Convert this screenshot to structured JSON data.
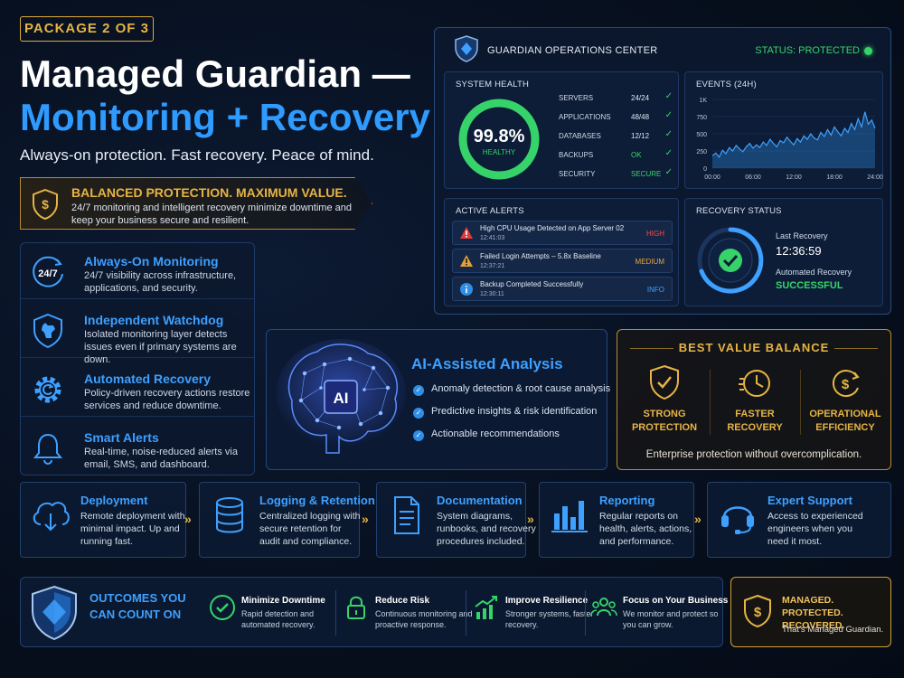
{
  "header": {
    "badge": "PACKAGE 2 OF 3",
    "title_line1": "Managed Guardian —",
    "title_line2": "Monitoring + Recovery",
    "tagline": "Always-on protection. Fast recovery. Peace of mind."
  },
  "value_banner": {
    "title": "BALANCED PROTECTION. MAXIMUM VALUE.",
    "text": "24/7 monitoring and intelligent recovery minimize downtime and keep your business secure and resilient."
  },
  "features": [
    {
      "title": "Always-On Monitoring",
      "text": "24/7 visibility across infrastructure, applications, and security.",
      "icon": "clock-24-7-icon",
      "icon_label": "24/7"
    },
    {
      "title": "Independent Watchdog",
      "text": "Isolated monitoring layer detects issues even if primary systems are down.",
      "icon": "watchdog-shield-icon"
    },
    {
      "title": "Automated Recovery",
      "text": "Policy-driven recovery actions restore services and reduce downtime.",
      "icon": "gear-refresh-icon"
    },
    {
      "title": "Smart Alerts",
      "text": "Real-time, noise-reduced alerts via email, SMS, and dashboard.",
      "icon": "bell-icon"
    }
  ],
  "ops_center": {
    "title": "GUARDIAN OPERATIONS CENTER",
    "status": "STATUS: PROTECTED",
    "system_health": {
      "title": "SYSTEM HEALTH",
      "value": "99.8%",
      "percent": 99.8,
      "label": "HEALTHY",
      "rows": [
        {
          "name": "SERVERS",
          "value": "24/24"
        },
        {
          "name": "APPLICATIONS",
          "value": "48/48"
        },
        {
          "name": "DATABASES",
          "value": "12/12"
        },
        {
          "name": "BACKUPS",
          "value": "OK"
        },
        {
          "name": "SECURITY",
          "value": "SECURE"
        }
      ]
    },
    "events": {
      "title": "EVENTS (24H)",
      "y_ticks": [
        "1K",
        "750",
        "500",
        "250",
        "0"
      ],
      "x_ticks": [
        "00:00",
        "06:00",
        "12:00",
        "18:00",
        "24:00"
      ],
      "ylim": [
        0,
        1000
      ],
      "values": [
        180,
        220,
        160,
        260,
        210,
        300,
        250,
        330,
        280,
        240,
        310,
        360,
        290,
        340,
        300,
        380,
        330,
        420,
        360,
        310,
        400,
        370,
        450,
        390,
        340,
        430,
        380,
        470,
        420,
        500,
        440,
        410,
        520,
        460,
        560,
        480,
        600,
        530,
        470,
        580,
        520,
        650,
        560,
        720,
        600,
        820,
        640,
        700,
        580
      ]
    },
    "alerts": {
      "title": "ACTIVE ALERTS",
      "items": [
        {
          "text": "High CPU Usage Detected on App Server 02",
          "time": "12:41:03",
          "level": "HIGH",
          "level_color": "#ff4a4a",
          "icon": "warning-red-icon"
        },
        {
          "text": "Failed Login Attempts – 5.8x Baseline",
          "time": "12:37:21",
          "level": "MEDIUM",
          "level_color": "#e8a23a",
          "icon": "warning-amber-icon"
        },
        {
          "text": "Backup Completed Successfully",
          "time": "12:30:11",
          "level": "INFO",
          "level_color": "#3ea0ff",
          "icon": "info-icon"
        }
      ]
    },
    "recovery": {
      "title": "RECOVERY STATUS",
      "last_label": "Last Recovery",
      "last_time": "12:36:59",
      "auto_label": "Automated Recovery",
      "auto_status": "SUCCESSFUL"
    }
  },
  "ai_panel": {
    "chip": "AI",
    "title": "AI-Assisted Analysis",
    "items": [
      "Anomaly detection & root cause analysis",
      "Predictive insights & risk identification",
      "Actionable recommendations"
    ]
  },
  "best_value": {
    "title": "BEST VALUE BALANCE",
    "columns": [
      {
        "line1": "STRONG",
        "line2": "PROTECTION",
        "icon": "shield-check-icon"
      },
      {
        "line1": "FASTER",
        "line2": "RECOVERY",
        "icon": "fast-clock-icon"
      },
      {
        "line1": "OPERATIONAL",
        "line2": "EFFICIENCY",
        "icon": "dollar-cycle-icon"
      }
    ],
    "footer": "Enterprise protection without overcomplication."
  },
  "process": [
    {
      "title": "Deployment",
      "text": "Remote deployment with minimal impact. Up and running fast.",
      "icon": "cloud-download-icon"
    },
    {
      "title": "Logging & Retention",
      "text": "Centralized logging with secure retention for audit and compliance.",
      "icon": "database-icon"
    },
    {
      "title": "Documentation",
      "text": "System diagrams, runbooks, and recovery procedures included.",
      "icon": "document-icon"
    },
    {
      "title": "Reporting",
      "text": "Regular reports on health, alerts, actions, and performance.",
      "icon": "bar-chart-icon"
    },
    {
      "title": "Expert Support",
      "text": "Access to experienced engineers when you need it most.",
      "icon": "headset-icon"
    }
  ],
  "process_arrow": "»",
  "outcomes": {
    "title": "OUTCOMES YOU CAN COUNT ON",
    "items": [
      {
        "title": "Minimize Downtime",
        "text": "Rapid detection and automated recovery.",
        "icon": "check-circle-icon"
      },
      {
        "title": "Reduce Risk",
        "text": "Continuous monitoring and proactive response.",
        "icon": "lock-icon"
      },
      {
        "title": "Improve Resilience",
        "text": "Stronger systems, faster recovery.",
        "icon": "trend-up-icon"
      },
      {
        "title": "Focus on Your Business",
        "text": "We monitor and protect so you can grow.",
        "icon": "people-icon"
      }
    ]
  },
  "closing": {
    "title": "MANAGED. PROTECTED. RECOVERED.",
    "text": "That's Managed Guardian."
  },
  "colors": {
    "accent_blue": "#3ea0ff",
    "accent_gold": "#e7b443",
    "ok_green": "#36d36a",
    "high_red": "#ff4a4a",
    "medium_amber": "#e8a23a"
  }
}
